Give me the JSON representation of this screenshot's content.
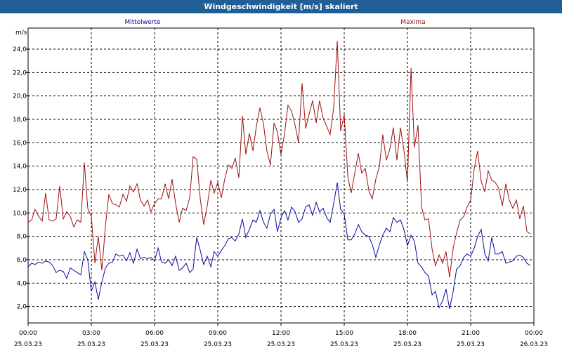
{
  "window": {
    "title": "Windgeschwindigkeit [m/s] skaliert"
  },
  "colors": {
    "title_bar": "#1f5f95",
    "series_avg": "#0a0aa0",
    "series_max": "#a01010"
  },
  "chart_data": {
    "type": "line",
    "title": "Windgeschwindigkeit [m/s] skaliert",
    "ylabel": "m/s",
    "xlabel": "",
    "ylim": [
      0.6,
      25.8
    ],
    "xlim": [
      0,
      24
    ],
    "x_unit": "hours since 25.03.23 00:00",
    "y_ticks": [
      "2,0",
      "4,0",
      "6,0",
      "8,0",
      "10,0",
      "12,0",
      "14,0",
      "16,0",
      "18,0",
      "20,0",
      "22,0",
      "24,0"
    ],
    "y_tick_values": [
      2,
      4,
      6,
      8,
      10,
      12,
      14,
      16,
      18,
      20,
      22,
      24
    ],
    "x_ticks": [
      {
        "time": "00:00",
        "date": "25.03.23"
      },
      {
        "time": "03:00",
        "date": "25.03.23"
      },
      {
        "time": "06:00",
        "date": "25.03.23"
      },
      {
        "time": "09:00",
        "date": "25.03.23"
      },
      {
        "time": "12:00",
        "date": "25.03.23"
      },
      {
        "time": "15:00",
        "date": "25.03.23"
      },
      {
        "time": "18:00",
        "date": "25.03.23"
      },
      {
        "time": "21:00",
        "date": "25.03.23"
      },
      {
        "time": "00:00",
        "date": "26.03.23"
      }
    ],
    "grid": true,
    "legend": "top",
    "series": [
      {
        "name": "Mittelwerte",
        "color": "#0a0aa0",
        "points": [
          [
            0.0,
            5.4
          ],
          [
            0.17,
            5.7
          ],
          [
            0.33,
            5.6
          ],
          [
            0.5,
            5.8
          ],
          [
            0.67,
            5.7
          ],
          [
            0.83,
            5.9
          ],
          [
            1.0,
            5.8
          ],
          [
            1.17,
            5.5
          ],
          [
            1.33,
            4.9
          ],
          [
            1.5,
            5.1
          ],
          [
            1.67,
            5.0
          ],
          [
            1.83,
            4.4
          ],
          [
            2.0,
            5.3
          ],
          [
            2.17,
            5.1
          ],
          [
            2.33,
            4.9
          ],
          [
            2.5,
            4.7
          ],
          [
            2.67,
            6.7
          ],
          [
            2.83,
            6.0
          ],
          [
            3.0,
            3.3
          ],
          [
            3.17,
            4.1
          ],
          [
            3.33,
            2.6
          ],
          [
            3.5,
            4.1
          ],
          [
            3.67,
            5.3
          ],
          [
            3.83,
            5.7
          ],
          [
            4.0,
            5.8
          ],
          [
            4.17,
            6.5
          ],
          [
            4.33,
            6.3
          ],
          [
            4.5,
            6.4
          ],
          [
            4.67,
            5.9
          ],
          [
            4.83,
            6.6
          ],
          [
            5.0,
            5.7
          ],
          [
            5.17,
            6.9
          ],
          [
            5.33,
            6.1
          ],
          [
            5.5,
            6.2
          ],
          [
            5.67,
            6.1
          ],
          [
            5.83,
            6.2
          ],
          [
            6.0,
            5.9
          ],
          [
            6.17,
            7.0
          ],
          [
            6.33,
            5.8
          ],
          [
            6.5,
            5.7
          ],
          [
            6.67,
            6.0
          ],
          [
            6.83,
            5.5
          ],
          [
            7.0,
            6.3
          ],
          [
            7.17,
            5.1
          ],
          [
            7.33,
            5.3
          ],
          [
            7.5,
            5.7
          ],
          [
            7.67,
            4.9
          ],
          [
            7.83,
            5.2
          ],
          [
            8.0,
            7.9
          ],
          [
            8.17,
            6.8
          ],
          [
            8.33,
            5.6
          ],
          [
            8.5,
            6.3
          ],
          [
            8.67,
            5.4
          ],
          [
            8.83,
            6.7
          ],
          [
            9.0,
            6.3
          ],
          [
            9.17,
            6.8
          ],
          [
            9.33,
            7.2
          ],
          [
            9.5,
            7.8
          ],
          [
            9.67,
            7.9
          ],
          [
            9.83,
            7.6
          ],
          [
            10.0,
            8.2
          ],
          [
            10.17,
            9.5
          ],
          [
            10.33,
            7.9
          ],
          [
            10.5,
            8.6
          ],
          [
            10.67,
            9.4
          ],
          [
            10.83,
            9.2
          ],
          [
            11.0,
            10.2
          ],
          [
            11.17,
            9.2
          ],
          [
            11.33,
            8.7
          ],
          [
            11.5,
            9.9
          ],
          [
            11.67,
            10.3
          ],
          [
            11.83,
            8.4
          ],
          [
            12.0,
            9.6
          ],
          [
            12.17,
            10.2
          ],
          [
            12.33,
            9.4
          ],
          [
            12.5,
            10.5
          ],
          [
            12.67,
            10.1
          ],
          [
            12.83,
            9.2
          ],
          [
            13.0,
            9.5
          ],
          [
            13.17,
            10.5
          ],
          [
            13.33,
            10.7
          ],
          [
            13.5,
            9.8
          ],
          [
            13.67,
            10.9
          ],
          [
            13.83,
            10.1
          ],
          [
            14.0,
            10.4
          ],
          [
            14.17,
            9.6
          ],
          [
            14.33,
            9.2
          ],
          [
            14.5,
            10.8
          ],
          [
            14.67,
            12.6
          ],
          [
            14.83,
            10.3
          ],
          [
            15.0,
            9.9
          ],
          [
            15.17,
            7.7
          ],
          [
            15.33,
            7.7
          ],
          [
            15.5,
            8.2
          ],
          [
            15.67,
            9.0
          ],
          [
            15.83,
            8.4
          ],
          [
            16.0,
            8.1
          ],
          [
            16.17,
            8.0
          ],
          [
            16.33,
            7.3
          ],
          [
            16.5,
            6.2
          ],
          [
            16.67,
            7.3
          ],
          [
            16.83,
            8.1
          ],
          [
            17.0,
            8.7
          ],
          [
            17.17,
            8.4
          ],
          [
            17.33,
            9.6
          ],
          [
            17.5,
            9.2
          ],
          [
            17.67,
            9.4
          ],
          [
            17.83,
            8.6
          ],
          [
            18.0,
            7.2
          ],
          [
            18.17,
            8.1
          ],
          [
            18.33,
            7.6
          ],
          [
            18.5,
            5.7
          ],
          [
            18.67,
            5.4
          ],
          [
            18.83,
            4.9
          ],
          [
            19.0,
            4.6
          ],
          [
            19.17,
            3.0
          ],
          [
            19.33,
            3.3
          ],
          [
            19.5,
            1.9
          ],
          [
            19.67,
            2.5
          ],
          [
            19.83,
            3.5
          ],
          [
            20.0,
            1.8
          ],
          [
            20.17,
            3.3
          ],
          [
            20.33,
            5.2
          ],
          [
            20.5,
            5.5
          ],
          [
            20.67,
            6.2
          ],
          [
            20.83,
            6.5
          ],
          [
            21.0,
            6.3
          ],
          [
            21.17,
            7.0
          ],
          [
            21.33,
            8.0
          ],
          [
            21.5,
            8.6
          ],
          [
            21.67,
            6.5
          ],
          [
            21.83,
            5.9
          ],
          [
            22.0,
            7.9
          ],
          [
            22.17,
            6.5
          ],
          [
            22.33,
            6.5
          ],
          [
            22.5,
            6.7
          ],
          [
            22.67,
            5.7
          ],
          [
            22.83,
            5.8
          ],
          [
            23.0,
            5.9
          ],
          [
            23.17,
            6.3
          ],
          [
            23.33,
            6.4
          ],
          [
            23.5,
            6.2
          ],
          [
            23.67,
            5.7
          ],
          [
            23.83,
            5.5
          ]
        ]
      },
      {
        "name": "Maxima",
        "color": "#a01010",
        "points": [
          [
            0.0,
            9.2
          ],
          [
            0.17,
            9.4
          ],
          [
            0.33,
            10.3
          ],
          [
            0.5,
            9.7
          ],
          [
            0.67,
            9.3
          ],
          [
            0.83,
            11.7
          ],
          [
            1.0,
            9.4
          ],
          [
            1.17,
            9.3
          ],
          [
            1.33,
            9.5
          ],
          [
            1.5,
            12.3
          ],
          [
            1.67,
            9.5
          ],
          [
            1.83,
            10.1
          ],
          [
            2.0,
            9.7
          ],
          [
            2.17,
            8.8
          ],
          [
            2.33,
            9.4
          ],
          [
            2.5,
            9.2
          ],
          [
            2.67,
            14.3
          ],
          [
            2.83,
            10.4
          ],
          [
            3.0,
            9.7
          ],
          [
            3.17,
            5.7
          ],
          [
            3.33,
            8.0
          ],
          [
            3.5,
            5.1
          ],
          [
            3.67,
            8.9
          ],
          [
            3.83,
            11.6
          ],
          [
            4.0,
            10.8
          ],
          [
            4.17,
            10.7
          ],
          [
            4.33,
            10.5
          ],
          [
            4.5,
            11.6
          ],
          [
            4.67,
            11.0
          ],
          [
            4.83,
            12.3
          ],
          [
            5.0,
            11.8
          ],
          [
            5.17,
            12.5
          ],
          [
            5.33,
            11.1
          ],
          [
            5.5,
            10.6
          ],
          [
            5.67,
            11.1
          ],
          [
            5.83,
            10.1
          ],
          [
            6.0,
            10.8
          ],
          [
            6.17,
            11.2
          ],
          [
            6.33,
            11.2
          ],
          [
            6.5,
            12.5
          ],
          [
            6.67,
            11.2
          ],
          [
            6.83,
            12.9
          ],
          [
            7.0,
            10.8
          ],
          [
            7.17,
            9.2
          ],
          [
            7.33,
            10.4
          ],
          [
            7.5,
            10.2
          ],
          [
            7.67,
            11.3
          ],
          [
            7.83,
            14.8
          ],
          [
            8.0,
            14.6
          ],
          [
            8.17,
            11.2
          ],
          [
            8.33,
            9.0
          ],
          [
            8.5,
            10.6
          ],
          [
            8.67,
            12.8
          ],
          [
            8.83,
            11.7
          ],
          [
            9.0,
            12.6
          ],
          [
            9.17,
            11.3
          ],
          [
            9.33,
            12.9
          ],
          [
            9.5,
            14.1
          ],
          [
            9.67,
            13.8
          ],
          [
            9.83,
            14.7
          ],
          [
            10.0,
            13.0
          ],
          [
            10.17,
            18.3
          ],
          [
            10.33,
            15.0
          ],
          [
            10.5,
            16.8
          ],
          [
            10.67,
            15.3
          ],
          [
            10.83,
            17.4
          ],
          [
            11.0,
            19.0
          ],
          [
            11.17,
            17.6
          ],
          [
            11.33,
            15.3
          ],
          [
            11.5,
            14.1
          ],
          [
            11.67,
            17.7
          ],
          [
            11.83,
            16.9
          ],
          [
            12.0,
            15.0
          ],
          [
            12.17,
            16.8
          ],
          [
            12.33,
            19.2
          ],
          [
            12.5,
            18.7
          ],
          [
            12.67,
            17.5
          ],
          [
            12.83,
            16.0
          ],
          [
            13.0,
            21.1
          ],
          [
            13.17,
            17.2
          ],
          [
            13.33,
            18.4
          ],
          [
            13.5,
            19.6
          ],
          [
            13.67,
            17.7
          ],
          [
            13.83,
            19.6
          ],
          [
            14.0,
            18.1
          ],
          [
            14.17,
            17.4
          ],
          [
            14.33,
            16.7
          ],
          [
            14.5,
            19.0
          ],
          [
            14.67,
            24.7
          ],
          [
            14.83,
            17.0
          ],
          [
            15.0,
            18.4
          ],
          [
            15.17,
            13.1
          ],
          [
            15.33,
            11.7
          ],
          [
            15.5,
            13.4
          ],
          [
            15.67,
            15.1
          ],
          [
            15.83,
            13.4
          ],
          [
            16.0,
            13.8
          ],
          [
            16.17,
            11.9
          ],
          [
            16.33,
            11.2
          ],
          [
            16.5,
            12.9
          ],
          [
            16.67,
            14.0
          ],
          [
            16.83,
            16.7
          ],
          [
            17.0,
            14.5
          ],
          [
            17.17,
            15.5
          ],
          [
            17.33,
            17.3
          ],
          [
            17.5,
            14.5
          ],
          [
            17.67,
            17.3
          ],
          [
            17.83,
            15.4
          ],
          [
            18.0,
            12.6
          ],
          [
            18.17,
            22.4
          ],
          [
            18.33,
            15.6
          ],
          [
            18.5,
            17.5
          ],
          [
            18.67,
            10.5
          ],
          [
            18.83,
            9.4
          ],
          [
            19.0,
            9.5
          ],
          [
            19.17,
            6.9
          ],
          [
            19.33,
            5.5
          ],
          [
            19.5,
            6.4
          ],
          [
            19.67,
            5.7
          ],
          [
            19.83,
            6.7
          ],
          [
            20.0,
            4.5
          ],
          [
            20.17,
            7.0
          ],
          [
            20.33,
            8.3
          ],
          [
            20.5,
            9.4
          ],
          [
            20.67,
            9.7
          ],
          [
            20.83,
            10.5
          ],
          [
            21.0,
            11.1
          ],
          [
            21.17,
            13.8
          ],
          [
            21.33,
            15.3
          ],
          [
            21.5,
            12.7
          ],
          [
            21.67,
            11.8
          ],
          [
            21.83,
            13.6
          ],
          [
            22.0,
            12.8
          ],
          [
            22.17,
            12.6
          ],
          [
            22.33,
            12.1
          ],
          [
            22.5,
            10.6
          ],
          [
            22.67,
            12.5
          ],
          [
            22.83,
            11.1
          ],
          [
            23.0,
            10.4
          ],
          [
            23.17,
            11.1
          ],
          [
            23.33,
            9.5
          ],
          [
            23.5,
            10.6
          ],
          [
            23.67,
            8.4
          ],
          [
            23.83,
            8.2
          ]
        ]
      }
    ]
  }
}
